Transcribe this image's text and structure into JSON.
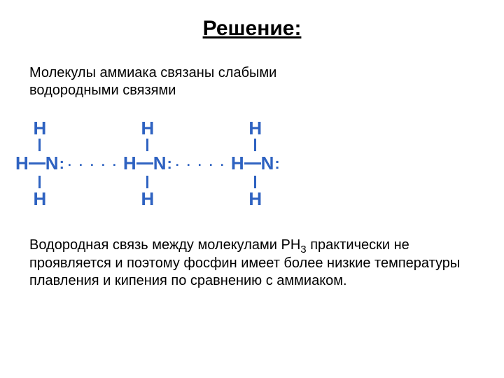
{
  "title": "Решение:",
  "intro_line1": "Молекулы аммиака связаны слабыми",
  "intro_line2": "водородными связями",
  "diagram": {
    "atom_h": "H",
    "atom_n": "N",
    "lone_pair": ":",
    "hbond_dots": ". . . . .",
    "colors": {
      "atom": "#2e62c1",
      "bond": "#2e62c1",
      "hbond": "#2e62c1"
    },
    "fontsize_atom": 26,
    "bond_v_length": 18,
    "bond_h_length": 24,
    "bond_width": 3,
    "molecule_count": 3
  },
  "conclusion_pre": "Водородная связь между молекулами PH",
  "conclusion_sub": "3",
  "conclusion_post": " практически не проявляется и поэтому фосфин имеет более низкие температуры плавления и кипения по сравнению с аммиаком.",
  "background_color": "#ffffff",
  "text_color": "#000000",
  "title_fontsize": 30,
  "body_fontsize": 20
}
